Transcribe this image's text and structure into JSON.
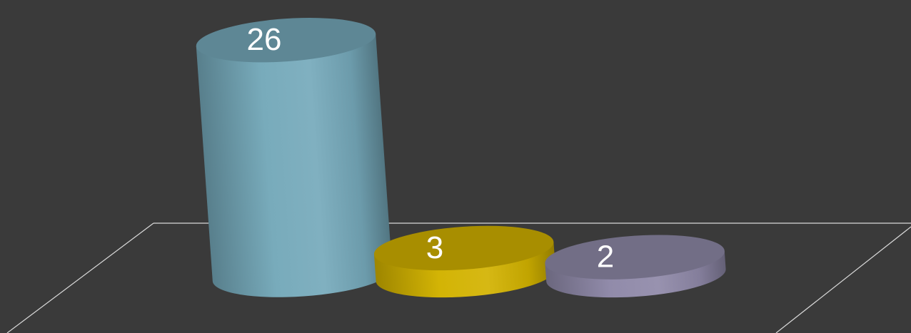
{
  "chart_data": {
    "type": "bar",
    "style": "3d-cylinder",
    "categories": [
      "",
      "",
      ""
    ],
    "values": [
      26,
      3,
      2
    ],
    "data_labels": [
      "26",
      "3",
      "2"
    ],
    "colors": [
      "#75a9ba",
      "#d2b200",
      "#8f89a8"
    ],
    "ylim": [
      0,
      26
    ],
    "grid": false,
    "legend": "none",
    "title": "",
    "xlabel": "",
    "ylabel": ""
  },
  "colors": {
    "background": "#3a3a3a",
    "floor_line": "#d9d9d9",
    "label": "#ffffff"
  }
}
